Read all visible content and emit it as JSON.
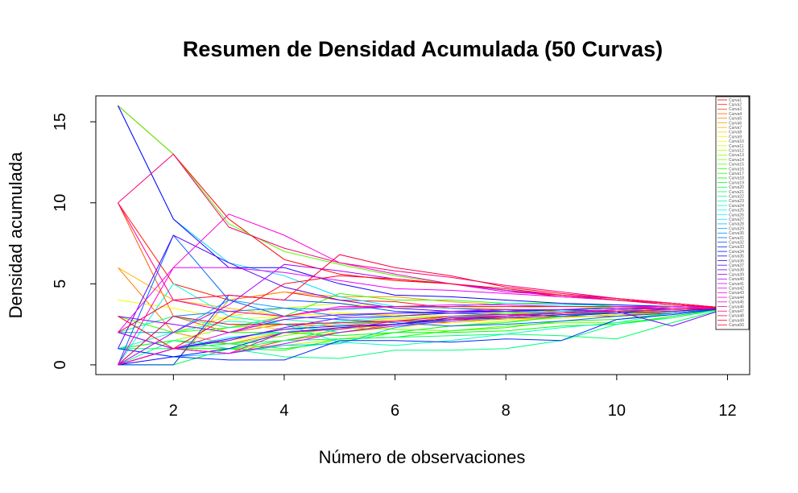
{
  "chart_data": {
    "type": "line",
    "title": "Resumen de Densidad Acumulada (50 Curvas)",
    "xlabel": "Número de observaciones",
    "ylabel": "Densidad acumulada",
    "xlim": [
      0.6,
      12.4
    ],
    "ylim": [
      -0.6,
      16.6
    ],
    "xticks": [
      2,
      4,
      6,
      8,
      10,
      12
    ],
    "yticks": [
      0,
      5,
      10,
      15
    ],
    "grid": false,
    "legend_position": "top-right",
    "x": [
      1,
      2,
      3,
      4,
      5,
      6,
      7,
      8,
      9,
      10,
      11,
      12
    ],
    "series": [
      {
        "name": "Curva1",
        "color": "#FF0000",
        "values": [
          16,
          13,
          9,
          6.5,
          5.6,
          5.2,
          5.0,
          4.6,
          4.2,
          4.0,
          3.8,
          3.5
        ]
      },
      {
        "name": "Curva2",
        "color": "#FF1F00",
        "values": [
          10,
          5,
          4,
          4.5,
          4.0,
          3.9,
          3.5,
          3.4,
          3.3,
          3.2,
          3.3,
          3.5
        ]
      },
      {
        "name": "Curva3",
        "color": "#FF3D00",
        "values": [
          2,
          1,
          0.7,
          1.5,
          2.0,
          2.5,
          2.9,
          2.8,
          3.0,
          3.0,
          3.3,
          3.5
        ]
      },
      {
        "name": "Curva4",
        "color": "#FF5C00",
        "values": [
          10,
          3,
          2,
          2.5,
          2.4,
          2.7,
          2.6,
          2.9,
          2.9,
          3.1,
          3.2,
          3.5
        ]
      },
      {
        "name": "Curva5",
        "color": "#FF7A00",
        "values": [
          6,
          2,
          1.3,
          2.0,
          2.2,
          2.5,
          3.0,
          3.0,
          3.2,
          3.3,
          3.4,
          3.5
        ]
      },
      {
        "name": "Curva6",
        "color": "#FF9900",
        "values": [
          0,
          0,
          4,
          4.5,
          4.2,
          4.2,
          3.9,
          3.7,
          3.6,
          3.5,
          3.5,
          3.5
        ]
      },
      {
        "name": "Curva7",
        "color": "#FFB800",
        "values": [
          6,
          4,
          3.5,
          3.0,
          3.2,
          3.0,
          3.3,
          3.2,
          3.1,
          3.2,
          3.4,
          3.5
        ]
      },
      {
        "name": "Curva8",
        "color": "#FFD600",
        "values": [
          2,
          3,
          2.5,
          2.2,
          2.6,
          2.8,
          3.0,
          3.1,
          3.2,
          3.4,
          3.5,
          3.5
        ]
      },
      {
        "name": "Curva9",
        "color": "#FFF500",
        "values": [
          0,
          1,
          1.5,
          2.0,
          2.0,
          2.3,
          2.6,
          2.8,
          2.9,
          3.1,
          3.3,
          3.5
        ]
      },
      {
        "name": "Curva10",
        "color": "#EBFF00",
        "values": [
          4,
          3.5,
          2.8,
          3.0,
          3.2,
          3.1,
          3.0,
          3.2,
          3.3,
          3.4,
          3.4,
          3.5
        ]
      },
      {
        "name": "Curva11",
        "color": "#CCFF00",
        "values": [
          2,
          2,
          3,
          3.5,
          3.8,
          3.5,
          3.6,
          3.5,
          3.6,
          3.5,
          3.5,
          3.5
        ]
      },
      {
        "name": "Curva12",
        "color": "#ADFF00",
        "values": [
          0,
          1,
          1.0,
          1.2,
          1.6,
          2.0,
          2.4,
          2.7,
          2.9,
          3.1,
          3.3,
          3.5
        ]
      },
      {
        "name": "Curva13",
        "color": "#8FFF00",
        "values": [
          1,
          1.5,
          2.3,
          2.5,
          2.6,
          2.9,
          3.0,
          3.1,
          3.3,
          3.4,
          3.5,
          3.5
        ]
      },
      {
        "name": "Curva14",
        "color": "#70FF00",
        "values": [
          0,
          1,
          1.3,
          1.8,
          2.3,
          2.2,
          2.1,
          2.4,
          2.6,
          2.6,
          2.9,
          3.5
        ]
      },
      {
        "name": "Curva15",
        "color": "#52FF00",
        "values": [
          16,
          13,
          8.7,
          7.0,
          6.2,
          5.5,
          5.0,
          4.7,
          4.3,
          4.0,
          3.8,
          3.5
        ]
      },
      {
        "name": "Curva16",
        "color": "#33FF00",
        "values": [
          3,
          2,
          2.3,
          3.0,
          4.4,
          4.0,
          4.0,
          3.8,
          3.8,
          3.6,
          3.5,
          3.5
        ]
      },
      {
        "name": "Curva17",
        "color": "#14FF00",
        "values": [
          0,
          1,
          1.0,
          0.9,
          1.6,
          1.7,
          2.1,
          2.3,
          2.7,
          2.8,
          3.2,
          3.5
        ]
      },
      {
        "name": "Curva18",
        "color": "#00FF0A",
        "values": [
          2,
          1,
          2.0,
          2.0,
          1.8,
          2.0,
          2.0,
          2.1,
          2.4,
          2.5,
          3.0,
          3.5
        ]
      },
      {
        "name": "Curva19",
        "color": "#00FF29",
        "values": [
          1,
          1.5,
          1.3,
          1.0,
          1.4,
          2.0,
          2.4,
          2.6,
          3.0,
          3.3,
          3.6,
          3.5
        ]
      },
      {
        "name": "Curva20",
        "color": "#00FF47",
        "values": [
          0,
          0,
          1.0,
          1.5,
          2.2,
          2.7,
          3.0,
          3.2,
          3.4,
          3.6,
          3.5,
          3.5
        ]
      },
      {
        "name": "Curva21",
        "color": "#00FF66",
        "values": [
          1,
          1,
          1.3,
          1.5,
          1.6,
          1.7,
          1.8,
          1.9,
          1.8,
          1.6,
          2.6,
          3.5
        ]
      },
      {
        "name": "Curva22",
        "color": "#00FF85",
        "values": [
          0,
          1.5,
          1.0,
          0.5,
          0.4,
          0.9,
          0.9,
          1.0,
          1.5,
          2.5,
          2.9,
          3.5
        ]
      },
      {
        "name": "Curva23",
        "color": "#00FFA3",
        "values": [
          2,
          3,
          2.3,
          2.8,
          2.5,
          2.7,
          2.7,
          2.9,
          3.1,
          3.3,
          3.4,
          3.5
        ]
      },
      {
        "name": "Curva24",
        "color": "#00FFC2",
        "values": [
          1,
          2,
          2.7,
          2.5,
          1.4,
          1.2,
          1.5,
          1.9,
          2.3,
          2.6,
          3.2,
          3.5
        ]
      },
      {
        "name": "Curva25",
        "color": "#00FFE0",
        "values": [
          0,
          5,
          3.0,
          2.5,
          2.0,
          2.4,
          2.8,
          3.0,
          3.2,
          3.4,
          3.5,
          3.5
        ]
      },
      {
        "name": "Curva26",
        "color": "#00FFFF",
        "values": [
          0,
          1,
          1.7,
          2.0,
          2.7,
          3.0,
          3.2,
          3.3,
          3.4,
          3.5,
          3.5,
          3.5
        ]
      },
      {
        "name": "Curva27",
        "color": "#00E0FF",
        "values": [
          16,
          9,
          6.3,
          5.5,
          4.2,
          3.6,
          3.6,
          3.8,
          3.7,
          3.7,
          3.6,
          3.5
        ]
      },
      {
        "name": "Curva28",
        "color": "#00C2FF",
        "values": [
          1,
          0.5,
          0.7,
          1.2,
          1.3,
          2.3,
          2.8,
          3.0,
          3.3,
          3.4,
          3.5,
          3.5
        ]
      },
      {
        "name": "Curva29",
        "color": "#00A3FF",
        "values": [
          2,
          2,
          4.0,
          3.5,
          3.4,
          3.6,
          3.5,
          3.3,
          3.2,
          3.3,
          3.4,
          3.5
        ]
      },
      {
        "name": "Curva30",
        "color": "#0085FF",
        "values": [
          0,
          3,
          3.3,
          3.5,
          3.0,
          3.2,
          3.2,
          3.3,
          3.4,
          3.5,
          3.5,
          3.5
        ]
      },
      {
        "name": "Curva31",
        "color": "#0066FF",
        "values": [
          0,
          8,
          4.0,
          3.0,
          2.8,
          2.6,
          2.4,
          2.5,
          2.7,
          3.0,
          3.2,
          3.5
        ]
      },
      {
        "name": "Curva32",
        "color": "#0047FF",
        "values": [
          0,
          0,
          4.3,
          4.0,
          3.8,
          3.3,
          3.2,
          3.1,
          3.0,
          3.2,
          3.5,
          3.5
        ]
      },
      {
        "name": "Curva33",
        "color": "#0029FF",
        "values": [
          1,
          0.5,
          0.3,
          0.3,
          1.5,
          1.5,
          1.4,
          1.6,
          1.5,
          2.8,
          3.1,
          3.5
        ]
      },
      {
        "name": "Curva34",
        "color": "#000AFF",
        "values": [
          0,
          0.5,
          1.0,
          2.0,
          2.3,
          2.5,
          2.9,
          3.0,
          3.2,
          3.4,
          3.5,
          3.5
        ]
      },
      {
        "name": "Curva35",
        "color": "#1400FF",
        "values": [
          16,
          9,
          6.0,
          6.0,
          5.0,
          4.3,
          4.2,
          4.0,
          3.8,
          3.7,
          3.6,
          3.5
        ]
      },
      {
        "name": "Curva36",
        "color": "#3300FF",
        "values": [
          2,
          1,
          1.6,
          2.2,
          2.4,
          2.5,
          2.8,
          2.9,
          3.1,
          3.2,
          3.3,
          3.5
        ]
      },
      {
        "name": "Curva37",
        "color": "#5200FF",
        "values": [
          1,
          8,
          6.3,
          4.8,
          4.0,
          3.5,
          3.3,
          3.3,
          3.4,
          3.5,
          3.5,
          3.5
        ]
      },
      {
        "name": "Curva38",
        "color": "#7000FF",
        "values": [
          0,
          1,
          1.5,
          2.3,
          2.9,
          3.0,
          3.2,
          3.3,
          3.4,
          3.3,
          2.4,
          3.5
        ]
      },
      {
        "name": "Curva39",
        "color": "#8F00FF",
        "values": [
          3,
          2.5,
          2.0,
          2.8,
          3.1,
          3.2,
          3.3,
          3.4,
          3.4,
          3.5,
          3.5,
          3.5
        ]
      },
      {
        "name": "Curva40",
        "color": "#AD00FF",
        "values": [
          0,
          2,
          3.7,
          6.2,
          5.8,
          5.3,
          5.0,
          4.6,
          4.3,
          4.1,
          3.8,
          3.5
        ]
      },
      {
        "name": "Curva41",
        "color": "#CC00FF",
        "values": [
          2,
          1,
          0.7,
          1.3,
          2.0,
          2.4,
          2.7,
          3.0,
          3.2,
          3.3,
          3.4,
          3.5
        ]
      },
      {
        "name": "Curva42",
        "color": "#EB00FF",
        "values": [
          2,
          6,
          6.0,
          5.7,
          5.2,
          4.7,
          4.6,
          4.4,
          4.2,
          4.0,
          3.7,
          3.5
        ]
      },
      {
        "name": "Curva43",
        "color": "#FF00F5",
        "values": [
          0,
          1,
          2.0,
          3.0,
          3.6,
          3.6,
          3.7,
          3.7,
          3.6,
          3.6,
          3.6,
          3.5
        ]
      },
      {
        "name": "Curva44",
        "color": "#FF00D6",
        "values": [
          0,
          6,
          9.3,
          8.0,
          6.3,
          5.6,
          5.0,
          4.5,
          4.3,
          4.0,
          3.8,
          3.5
        ]
      },
      {
        "name": "Curva45",
        "color": "#FF00B8",
        "values": [
          0,
          1,
          0.7,
          2.0,
          2.2,
          2.7,
          3.0,
          3.1,
          3.2,
          3.4,
          3.5,
          3.5
        ]
      },
      {
        "name": "Curva46",
        "color": "#FF0099",
        "values": [
          10,
          4,
          3.3,
          3.0,
          3.5,
          3.6,
          3.6,
          3.6,
          3.6,
          3.6,
          3.5,
          3.5
        ]
      },
      {
        "name": "Curva47",
        "color": "#FF007A",
        "values": [
          10,
          13,
          8.5,
          7.2,
          6.3,
          5.8,
          5.4,
          4.9,
          4.5,
          4.1,
          3.8,
          3.5
        ]
      },
      {
        "name": "Curva48",
        "color": "#FF005C",
        "values": [
          0,
          3,
          2.5,
          2.5,
          2.6,
          2.7,
          2.8,
          3.0,
          3.2,
          3.3,
          3.4,
          3.5
        ]
      },
      {
        "name": "Curva49",
        "color": "#FF003D",
        "values": [
          2,
          4,
          4.3,
          4.0,
          6.8,
          6.0,
          5.5,
          4.8,
          4.4,
          4.1,
          3.8,
          3.5
        ]
      },
      {
        "name": "Curva50",
        "color": "#FF001F",
        "values": [
          3,
          1,
          3.0,
          5.0,
          5.5,
          5.3,
          5.0,
          4.7,
          4.3,
          4.0,
          3.7,
          3.5
        ]
      }
    ]
  }
}
